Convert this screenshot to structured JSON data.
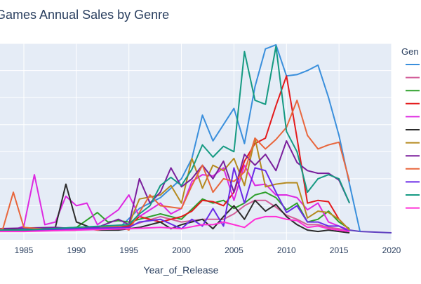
{
  "chart_data": {
    "type": "line",
    "title": "Games Annual Sales by Genre",
    "xlabel": "Year_of_Release",
    "ylabel": "",
    "xlim": [
      1982,
      2020
    ],
    "ylim": [
      0,
      140
    ],
    "x_ticks": [
      1985,
      1990,
      1995,
      2000,
      2005,
      2010,
      2015,
      2020
    ],
    "y_gridlines": [
      0,
      20,
      40,
      60,
      80,
      100,
      120,
      140
    ],
    "legend": {
      "title": "Gen",
      "placement": "right"
    },
    "grid": true,
    "background": "#e5ecf6",
    "series": [
      {
        "color": "#3a8fdc",
        "points": [
          [
            1982,
            2
          ],
          [
            1986,
            3
          ],
          [
            1990,
            3
          ],
          [
            1994,
            3
          ],
          [
            1996,
            18
          ],
          [
            1998,
            26
          ],
          [
            2000,
            40
          ],
          [
            2001,
            55
          ],
          [
            2002,
            87
          ],
          [
            2003,
            68
          ],
          [
            2004,
            80
          ],
          [
            2005,
            92
          ],
          [
            2006,
            66
          ],
          [
            2007,
            108
          ],
          [
            2008,
            136
          ],
          [
            2009,
            139
          ],
          [
            2010,
            116
          ],
          [
            2011,
            117
          ],
          [
            2012,
            120
          ],
          [
            2013,
            124
          ],
          [
            2014,
            100
          ],
          [
            2015,
            72
          ],
          [
            2016,
            36
          ],
          [
            2017,
            1
          ]
        ]
      },
      {
        "color": "#d35f9a",
        "points": [
          [
            1982,
            2
          ],
          [
            1990,
            2
          ],
          [
            1995,
            5
          ],
          [
            1998,
            12
          ],
          [
            2000,
            8
          ],
          [
            2002,
            10
          ],
          [
            2004,
            10
          ],
          [
            2005,
            14
          ],
          [
            2006,
            20
          ],
          [
            2007,
            24
          ],
          [
            2008,
            24
          ],
          [
            2009,
            19
          ],
          [
            2010,
            13
          ],
          [
            2011,
            10
          ],
          [
            2012,
            6
          ],
          [
            2013,
            6
          ],
          [
            2014,
            4
          ],
          [
            2015,
            3
          ],
          [
            2016,
            1
          ]
        ]
      },
      {
        "color": "#2ea02c",
        "points": [
          [
            1982,
            1
          ],
          [
            1985,
            2
          ],
          [
            1990,
            4
          ],
          [
            1992,
            15
          ],
          [
            1993,
            8
          ],
          [
            1994,
            9
          ],
          [
            1995,
            8
          ],
          [
            1996,
            10
          ],
          [
            1998,
            14
          ],
          [
            2000,
            10
          ],
          [
            2002,
            25
          ],
          [
            2003,
            22
          ],
          [
            2004,
            24
          ],
          [
            2005,
            18
          ],
          [
            2006,
            22
          ],
          [
            2007,
            28
          ],
          [
            2008,
            30
          ],
          [
            2009,
            26
          ],
          [
            2010,
            17
          ],
          [
            2011,
            22
          ],
          [
            2012,
            8
          ],
          [
            2013,
            10
          ],
          [
            2014,
            16
          ],
          [
            2015,
            8
          ],
          [
            2016,
            3
          ]
        ]
      },
      {
        "color": "#e41a1c",
        "points": [
          [
            1982,
            1
          ],
          [
            1990,
            2
          ],
          [
            1995,
            5
          ],
          [
            1996,
            12
          ],
          [
            1998,
            8
          ],
          [
            2000,
            12
          ],
          [
            2001,
            16
          ],
          [
            2002,
            24
          ],
          [
            2003,
            23
          ],
          [
            2004,
            20
          ],
          [
            2005,
            30
          ],
          [
            2006,
            53
          ],
          [
            2007,
            66
          ],
          [
            2008,
            70
          ],
          [
            2009,
            94
          ],
          [
            2010,
            116
          ],
          [
            2011,
            70
          ],
          [
            2012,
            22
          ],
          [
            2013,
            24
          ],
          [
            2014,
            23
          ],
          [
            2015,
            10
          ],
          [
            2016,
            2
          ]
        ]
      },
      {
        "color": "#dd29e1",
        "points": [
          [
            1982,
            3
          ],
          [
            1984,
            2
          ],
          [
            1985,
            5
          ],
          [
            1986,
            43
          ],
          [
            1987,
            6
          ],
          [
            1988,
            8
          ],
          [
            1989,
            27
          ],
          [
            1990,
            20
          ],
          [
            1991,
            22
          ],
          [
            1992,
            6
          ],
          [
            1994,
            17
          ],
          [
            1995,
            28
          ],
          [
            1996,
            12
          ],
          [
            1998,
            22
          ],
          [
            1999,
            14
          ],
          [
            2000,
            18
          ],
          [
            2001,
            38
          ],
          [
            2002,
            43
          ],
          [
            2003,
            42
          ],
          [
            2004,
            48
          ],
          [
            2005,
            24
          ],
          [
            2006,
            50
          ],
          [
            2007,
            35
          ],
          [
            2008,
            36
          ],
          [
            2009,
            28
          ],
          [
            2010,
            28
          ],
          [
            2011,
            26
          ],
          [
            2012,
            17
          ],
          [
            2013,
            22
          ],
          [
            2014,
            8
          ],
          [
            2015,
            5
          ],
          [
            2016,
            2
          ]
        ]
      },
      {
        "color": "#2b2b2b",
        "points": [
          [
            1982,
            3
          ],
          [
            1985,
            2
          ],
          [
            1988,
            4
          ],
          [
            1989,
            36
          ],
          [
            1990,
            8
          ],
          [
            1992,
            2
          ],
          [
            1994,
            2
          ],
          [
            1995,
            3
          ],
          [
            1996,
            4
          ],
          [
            1998,
            8
          ],
          [
            1999,
            3
          ],
          [
            2000,
            6
          ],
          [
            2002,
            10
          ],
          [
            2003,
            3
          ],
          [
            2004,
            12
          ],
          [
            2005,
            20
          ],
          [
            2006,
            10
          ],
          [
            2007,
            24
          ],
          [
            2008,
            16
          ],
          [
            2009,
            21
          ],
          [
            2010,
            12
          ],
          [
            2011,
            6
          ],
          [
            2012,
            2
          ],
          [
            2013,
            1
          ],
          [
            2014,
            2
          ],
          [
            2015,
            1
          ],
          [
            2016,
            0
          ]
        ]
      },
      {
        "color": "#b58a1f",
        "points": [
          [
            1982,
            2
          ],
          [
            1985,
            2
          ],
          [
            1990,
            3
          ],
          [
            1994,
            5
          ],
          [
            1995,
            6
          ],
          [
            1996,
            25
          ],
          [
            1998,
            28
          ],
          [
            1999,
            35
          ],
          [
            2000,
            22
          ],
          [
            2001,
            55
          ],
          [
            2002,
            33
          ],
          [
            2003,
            50
          ],
          [
            2004,
            46
          ],
          [
            2005,
            55
          ],
          [
            2006,
            35
          ],
          [
            2007,
            70
          ],
          [
            2008,
            34
          ],
          [
            2009,
            36
          ],
          [
            2010,
            37
          ],
          [
            2011,
            37
          ],
          [
            2012,
            11
          ],
          [
            2013,
            16
          ],
          [
            2014,
            15
          ],
          [
            2015,
            10
          ],
          [
            2016,
            2
          ]
        ]
      },
      {
        "color": "#7a1f9c",
        "points": [
          [
            1982,
            3
          ],
          [
            1988,
            4
          ],
          [
            1990,
            3
          ],
          [
            1992,
            4
          ],
          [
            1994,
            10
          ],
          [
            1995,
            6
          ],
          [
            1996,
            40
          ],
          [
            1997,
            22
          ],
          [
            1998,
            30
          ],
          [
            1999,
            48
          ],
          [
            2000,
            34
          ],
          [
            2001,
            40
          ],
          [
            2002,
            50
          ],
          [
            2003,
            40
          ],
          [
            2004,
            53
          ],
          [
            2005,
            30
          ],
          [
            2006,
            58
          ],
          [
            2007,
            50
          ],
          [
            2008,
            58
          ],
          [
            2009,
            46
          ],
          [
            2010,
            68
          ],
          [
            2011,
            52
          ],
          [
            2012,
            46
          ],
          [
            2013,
            44
          ],
          [
            2014,
            44
          ],
          [
            2015,
            39
          ],
          [
            2016,
            22
          ]
        ]
      },
      {
        "color": "#e8663c",
        "points": [
          [
            1982,
            2
          ],
          [
            1983,
            3
          ],
          [
            1984,
            30
          ],
          [
            1985,
            4
          ],
          [
            1988,
            2
          ],
          [
            1990,
            4
          ],
          [
            1992,
            2
          ],
          [
            1994,
            5
          ],
          [
            1995,
            2
          ],
          [
            1997,
            28
          ],
          [
            1998,
            20
          ],
          [
            2000,
            18
          ],
          [
            2001,
            35
          ],
          [
            2002,
            50
          ],
          [
            2003,
            30
          ],
          [
            2004,
            40
          ],
          [
            2005,
            38
          ],
          [
            2006,
            45
          ],
          [
            2007,
            70
          ],
          [
            2008,
            62
          ],
          [
            2009,
            69
          ],
          [
            2010,
            78
          ],
          [
            2011,
            98
          ],
          [
            2012,
            72
          ],
          [
            2013,
            62
          ],
          [
            2014,
            65
          ],
          [
            2015,
            67
          ],
          [
            2016,
            38
          ]
        ]
      },
      {
        "color": "#6a2be6",
        "points": [
          [
            1982,
            1
          ],
          [
            1990,
            3
          ],
          [
            1995,
            4
          ],
          [
            1996,
            8
          ],
          [
            1998,
            10
          ],
          [
            2000,
            3
          ],
          [
            2001,
            10
          ],
          [
            2002,
            5
          ],
          [
            2003,
            18
          ],
          [
            2004,
            5
          ],
          [
            2005,
            48
          ],
          [
            2006,
            22
          ],
          [
            2007,
            48
          ],
          [
            2008,
            46
          ],
          [
            2009,
            30
          ],
          [
            2010,
            15
          ],
          [
            2011,
            20
          ],
          [
            2012,
            8
          ],
          [
            2013,
            8
          ],
          [
            2014,
            5
          ],
          [
            2015,
            5
          ],
          [
            2016,
            1
          ]
        ]
      },
      {
        "color": "#159a82",
        "points": [
          [
            1982,
            2
          ],
          [
            1985,
            2
          ],
          [
            1990,
            4
          ],
          [
            1995,
            6
          ],
          [
            1996,
            14
          ],
          [
            1997,
            20
          ],
          [
            1998,
            35
          ],
          [
            1999,
            41
          ],
          [
            2000,
            35
          ],
          [
            2001,
            47
          ],
          [
            2002,
            65
          ],
          [
            2003,
            56
          ],
          [
            2004,
            64
          ],
          [
            2005,
            60
          ],
          [
            2006,
            134
          ],
          [
            2007,
            98
          ],
          [
            2008,
            95
          ],
          [
            2009,
            138
          ],
          [
            2010,
            75
          ],
          [
            2011,
            60
          ],
          [
            2012,
            30
          ],
          [
            2013,
            40
          ],
          [
            2014,
            43
          ],
          [
            2015,
            40
          ],
          [
            2016,
            22
          ]
        ]
      },
      {
        "color": "#ff2fd6",
        "points": [
          [
            1982,
            1
          ],
          [
            1985,
            1
          ],
          [
            1990,
            2
          ],
          [
            1995,
            3
          ],
          [
            1998,
            4
          ],
          [
            2000,
            3
          ],
          [
            2002,
            6
          ],
          [
            2003,
            6
          ],
          [
            2004,
            8
          ],
          [
            2005,
            6
          ],
          [
            2006,
            4
          ],
          [
            2007,
            10
          ],
          [
            2008,
            12
          ],
          [
            2009,
            12
          ],
          [
            2010,
            10
          ],
          [
            2011,
            9
          ],
          [
            2012,
            4
          ],
          [
            2013,
            5
          ],
          [
            2014,
            3
          ],
          [
            2015,
            2
          ],
          [
            2016,
            1
          ]
        ]
      }
    ],
    "tail": {
      "color": "#5e3fbf",
      "points": [
        [
          2016,
          2
        ],
        [
          2017,
          1
        ],
        [
          2020,
          0
        ]
      ]
    }
  }
}
